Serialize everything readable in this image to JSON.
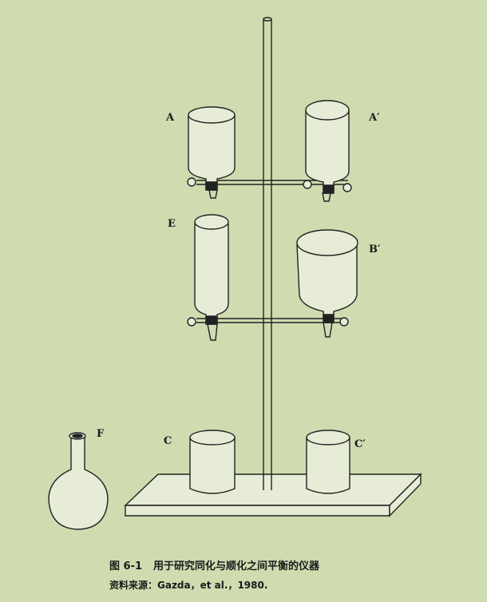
{
  "labels": {
    "A": "A",
    "A_prime": "A′",
    "E": "E",
    "B_prime": "B′",
    "F": "F",
    "C": "C",
    "C_prime": "C′"
  },
  "caption": {
    "number": "图 6-1",
    "title": "用于研究同化与顺化之间平衡的仪器"
  },
  "source": "资料来源：Gazda，et al.，1980.",
  "colors": {
    "background": "#cfdcb0",
    "stroke": "#222222",
    "vessel_fill": "#e6ecd6"
  }
}
